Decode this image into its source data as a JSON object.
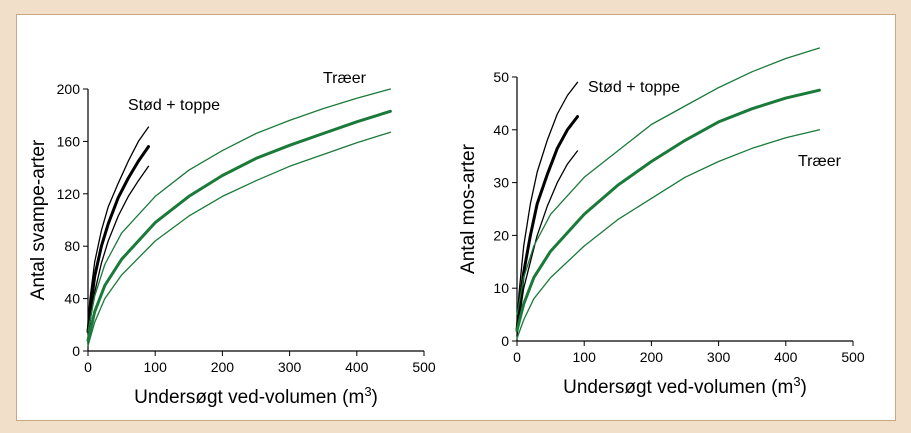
{
  "chart_data": [
    {
      "type": "line",
      "title": "",
      "xlabel": "Undersøgt ved-volumen",
      "xlabel_unit_base": "(m",
      "xlabel_unit_exp": "3",
      "xlabel_unit_close": ")",
      "ylabel": "Antal svampe-arter",
      "xlim": [
        0,
        500
      ],
      "ylim": [
        0,
        200
      ],
      "x_ticks": [
        0,
        100,
        200,
        300,
        400,
        500
      ],
      "y_ticks": [
        0,
        40,
        80,
        120,
        160,
        200
      ],
      "grid": false,
      "annotations": [
        "Stød + toppe",
        "Træer"
      ],
      "series": [
        {
          "group": "stod",
          "role": "upper",
          "color": "#000000",
          "x": [
            0,
            3,
            10,
            20,
            30,
            45,
            60,
            75,
            90
          ],
          "y": [
            22,
            40,
            68,
            92,
            110,
            128,
            145,
            160,
            171
          ]
        },
        {
          "group": "stod",
          "role": "mean",
          "color": "#000000",
          "x": [
            0,
            3,
            10,
            20,
            30,
            45,
            60,
            75,
            90
          ],
          "y": [
            15,
            30,
            57,
            80,
            97,
            117,
            132,
            145,
            156
          ]
        },
        {
          "group": "stod",
          "role": "lower",
          "color": "#000000",
          "x": [
            0,
            3,
            10,
            20,
            30,
            45,
            60,
            75,
            90
          ],
          "y": [
            10,
            22,
            45,
            67,
            84,
            103,
            118,
            130,
            141
          ]
        },
        {
          "group": "traeer",
          "role": "upper",
          "color": "#1a7a3a",
          "x": [
            0,
            10,
            25,
            50,
            100,
            150,
            200,
            250,
            300,
            350,
            400,
            450
          ],
          "y": [
            15,
            42,
            66,
            90,
            118,
            138,
            153,
            166,
            176,
            185,
            193,
            200
          ]
        },
        {
          "group": "traeer",
          "role": "mean",
          "color": "#1a7a3a",
          "x": [
            0,
            10,
            25,
            50,
            100,
            150,
            200,
            250,
            300,
            350,
            400,
            450
          ],
          "y": [
            8,
            30,
            50,
            70,
            98,
            118,
            134,
            147,
            157,
            166,
            175,
            183
          ]
        },
        {
          "group": "traeer",
          "role": "lower",
          "color": "#1a7a3a",
          "x": [
            0,
            10,
            25,
            50,
            100,
            150,
            200,
            250,
            300,
            350,
            400,
            450
          ],
          "y": [
            4,
            22,
            40,
            58,
            84,
            103,
            118,
            130,
            141,
            150,
            159,
            167
          ]
        }
      ]
    },
    {
      "type": "line",
      "title": "",
      "xlabel": "Undersøgt ved-volumen",
      "xlabel_unit_base": "(m",
      "xlabel_unit_exp": "3",
      "xlabel_unit_close": ")",
      "ylabel": "Antal mos-arter",
      "xlim": [
        0,
        500
      ],
      "ylim": [
        0,
        50
      ],
      "x_ticks": [
        0,
        100,
        200,
        300,
        400,
        500
      ],
      "y_ticks": [
        0,
        10,
        20,
        30,
        40,
        50
      ],
      "grid": false,
      "annotations": [
        "Stød + toppe",
        "Træer"
      ],
      "series": [
        {
          "group": "stod",
          "role": "upper",
          "color": "#000000",
          "x": [
            0,
            3,
            10,
            20,
            30,
            45,
            60,
            75,
            90
          ],
          "y": [
            3,
            9,
            18,
            26,
            32,
            38,
            43,
            46.5,
            49
          ]
        },
        {
          "group": "stod",
          "role": "mean",
          "color": "#000000",
          "x": [
            0,
            3,
            10,
            20,
            30,
            45,
            60,
            75,
            90
          ],
          "y": [
            2,
            6,
            13,
            20,
            26,
            31.5,
            36.5,
            40,
            42.5
          ]
        },
        {
          "group": "stod",
          "role": "lower",
          "color": "#000000",
          "x": [
            0,
            3,
            10,
            20,
            30,
            45,
            60,
            75,
            90
          ],
          "y": [
            1,
            4,
            10,
            15,
            20,
            25.5,
            30,
            33.5,
            36
          ]
        },
        {
          "group": "traeer",
          "role": "upper",
          "color": "#1a7a3a",
          "x": [
            0,
            10,
            25,
            50,
            100,
            150,
            200,
            250,
            300,
            350,
            400,
            450
          ],
          "y": [
            5,
            12,
            18,
            24,
            31,
            36,
            41,
            44.5,
            48,
            51,
            53.5,
            55.5
          ]
        },
        {
          "group": "traeer",
          "role": "mean",
          "color": "#1a7a3a",
          "x": [
            0,
            10,
            25,
            50,
            100,
            150,
            200,
            250,
            300,
            350,
            400,
            450
          ],
          "y": [
            2,
            7,
            12,
            17,
            24,
            29.5,
            34,
            38,
            41.5,
            44,
            46,
            47.5
          ]
        },
        {
          "group": "traeer",
          "role": "lower",
          "color": "#1a7a3a",
          "x": [
            0,
            10,
            25,
            50,
            100,
            150,
            200,
            250,
            300,
            350,
            400,
            450
          ],
          "y": [
            0.5,
            4,
            8,
            12,
            18,
            23,
            27,
            31,
            34,
            36.5,
            38.5,
            40
          ]
        }
      ]
    }
  ]
}
